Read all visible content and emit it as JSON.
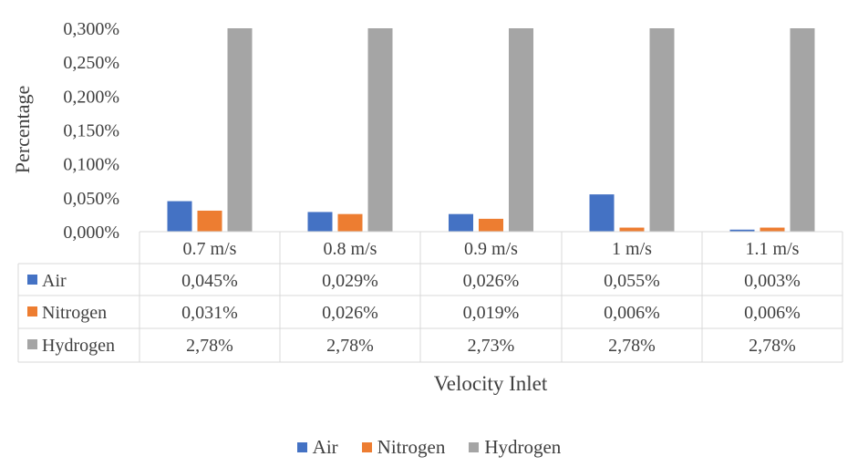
{
  "chart_data": {
    "type": "bar",
    "title": "",
    "ylabel": "Percentage",
    "xlabel": "Velocity Inlet",
    "ylim": [
      0,
      0.3
    ],
    "y_ticks": [
      "0,000%",
      "0,050%",
      "0,100%",
      "0,150%",
      "0,200%",
      "0,250%",
      "0,300%"
    ],
    "categories": [
      "0.7 m/s",
      "0.8 m/s",
      "0.9 m/s",
      "1 m/s",
      "1.1 m/s"
    ],
    "series": [
      {
        "name": "Air",
        "color": "#4472C4",
        "values": [
          0.045,
          0.029,
          0.026,
          0.055,
          0.003
        ],
        "table_values": [
          "0,045%",
          "0,029%",
          "0,026%",
          "0,055%",
          "0,003%"
        ]
      },
      {
        "name": "Nitrogen",
        "color": "#ED7D31",
        "values": [
          0.031,
          0.026,
          0.019,
          0.006,
          0.006
        ],
        "table_values": [
          "0,031%",
          "0,026%",
          "0,019%",
          "0,006%",
          "0,006%"
        ]
      },
      {
        "name": "Hydrogen",
        "color": "#A5A5A5",
        "values": [
          2.78,
          2.78,
          2.73,
          2.78,
          2.78
        ],
        "table_values": [
          "2,78%",
          "2,78%",
          "2,73%",
          "2,78%",
          "2,78%"
        ]
      }
    ],
    "grid": false,
    "legend_position": "bottom",
    "data_table": true
  }
}
